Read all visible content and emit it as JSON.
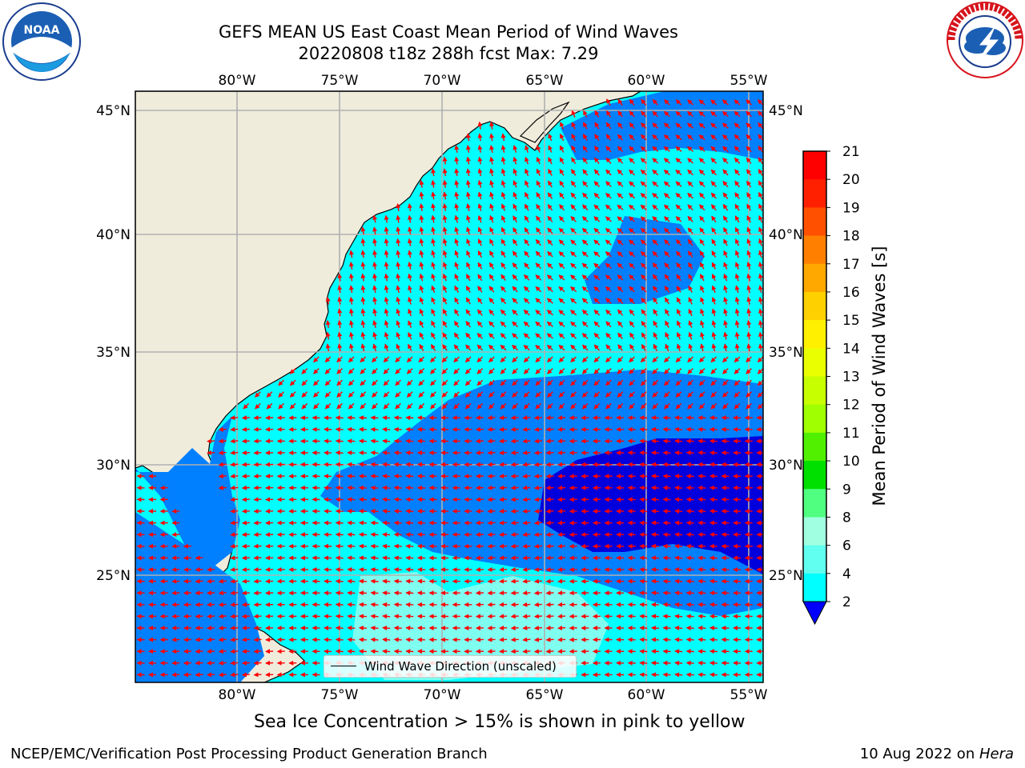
{
  "header": {
    "title_line1": "GEFS MEAN US East Coast Mean Period of Wind Waves",
    "title_line2": "20220808 t18z 288h fcst   Max: 7.29"
  },
  "logos": {
    "left": "noaa-logo",
    "left_text": "NOAA",
    "right": "nws-logo"
  },
  "map": {
    "lon_ticks": [
      "80°W",
      "75°W",
      "70°W",
      "65°W",
      "60°W",
      "55°W"
    ],
    "lat_ticks": [
      "45°N",
      "40°N",
      "35°N",
      "30°N",
      "25°N"
    ],
    "legend_label": "Wind Wave Direction (unscaled)",
    "arrow_color": "#ff0000",
    "land_color": "#efecdc"
  },
  "colorbar": {
    "label": "Mean Period of Wind Waves [s]",
    "ticks": [
      "21",
      "20",
      "19",
      "18",
      "17",
      "16",
      "15",
      "14",
      "13",
      "12",
      "11",
      "10",
      "9",
      "8",
      "6",
      "4",
      "2"
    ],
    "under_color": "#0000ff"
  },
  "subtitle": "Sea Ice Concentration > 15% is shown in pink to yellow",
  "footer": {
    "left": "NCEP/EMC/Verification Post Processing Product Generation Branch",
    "right_date": "10 Aug 2022 on ",
    "right_host": "Hera"
  }
}
